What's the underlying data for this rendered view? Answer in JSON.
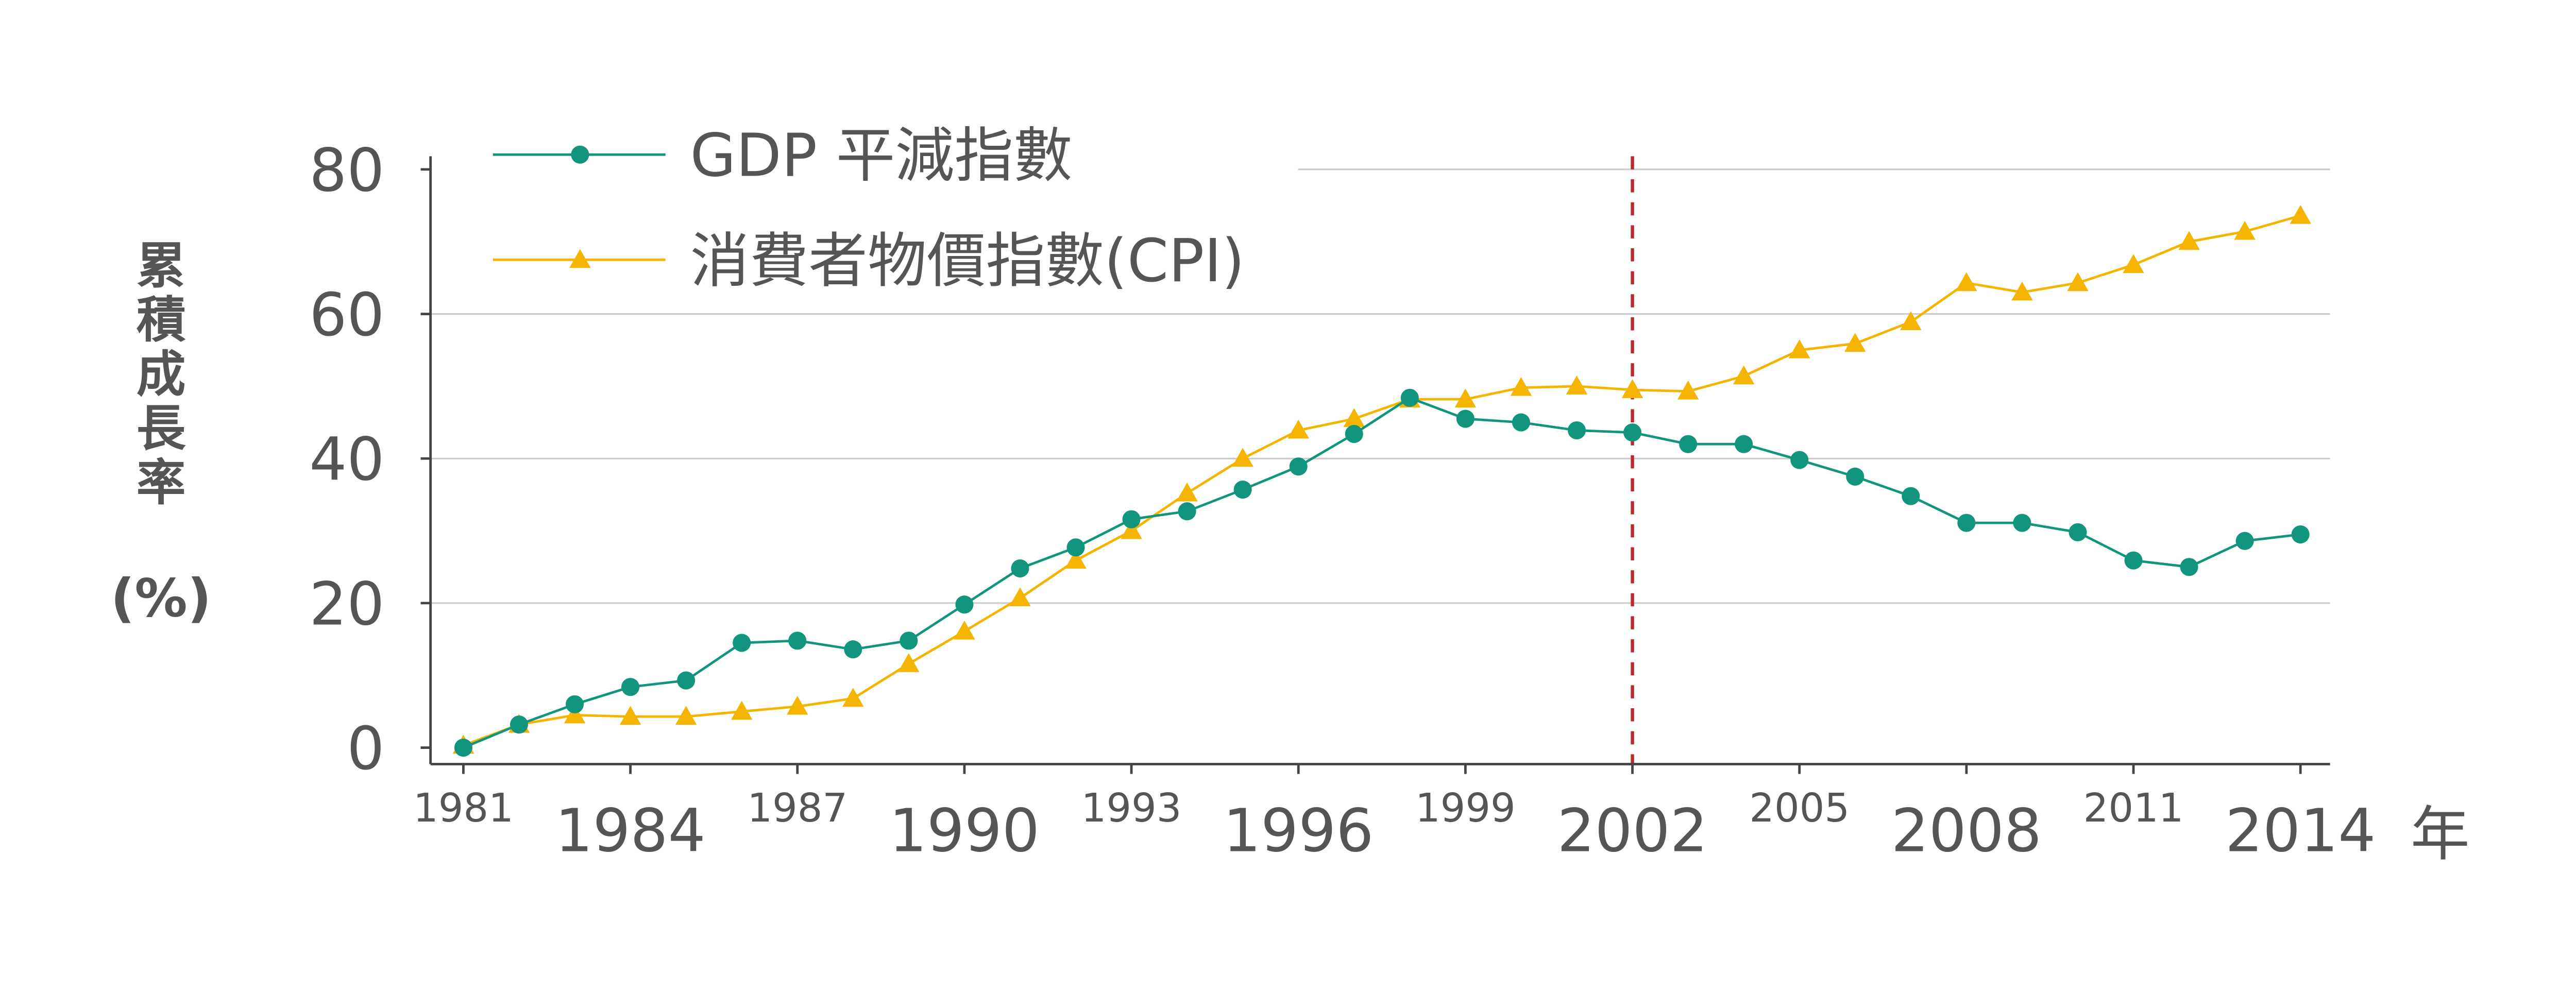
{
  "chart_data": {
    "type": "line",
    "title": "",
    "xlabel": "年",
    "ylabel_chars": [
      "累",
      "積",
      "成",
      "長",
      "率"
    ],
    "ylabel_unit": "(%)",
    "ylim": [
      0,
      80
    ],
    "xlim": [
      1981,
      2014
    ],
    "yticks": [
      0,
      20,
      40,
      60,
      80
    ],
    "xticks_major": [
      1984,
      1990,
      1996,
      2002,
      2008,
      2014
    ],
    "xticks_minor": [
      1981,
      1987,
      1993,
      1999,
      2005,
      2011
    ],
    "grid": "horizontal",
    "legend_placement": "top-left",
    "reference_line": {
      "x": 2002,
      "style": "dashed",
      "color": "#c0262d"
    },
    "x": [
      1981,
      1982,
      1983,
      1984,
      1985,
      1986,
      1987,
      1988,
      1989,
      1990,
      1991,
      1992,
      1993,
      1994,
      1995,
      1996,
      1997,
      1998,
      1999,
      2000,
      2001,
      2002,
      2003,
      2004,
      2005,
      2006,
      2007,
      2008,
      2009,
      2010,
      2011,
      2012,
      2013,
      2014
    ],
    "series": [
      {
        "name": "GDP 平減指數",
        "color": "#12957e",
        "marker": "circle",
        "values": [
          0,
          3.2,
          6,
          8.4,
          9.3,
          14.5,
          14.8,
          13.6,
          14.8,
          19.8,
          24.8,
          27.7,
          31.6,
          32.7,
          35.7,
          38.9,
          43.4,
          48.4,
          45.5,
          45,
          43.9,
          43.6,
          42,
          42,
          39.8,
          37.5,
          34.8,
          31.1,
          31.1,
          29.8,
          25.9,
          25,
          28.6,
          29.5
        ]
      },
      {
        "name": "消費者物價指數(CPI)",
        "color": "#f4b400",
        "marker": "triangle",
        "values": [
          0.3,
          3.2,
          4.5,
          4.3,
          4.3,
          5,
          5.7,
          6.8,
          11.6,
          16.1,
          20.7,
          25.9,
          30,
          35.2,
          40,
          43.9,
          45.5,
          48.2,
          48.2,
          49.8,
          50,
          49.5,
          49.3,
          51.4,
          55,
          55.9,
          58.9,
          64.3,
          63,
          64.3,
          66.8,
          70,
          71.4,
          73.6
        ]
      }
    ]
  }
}
